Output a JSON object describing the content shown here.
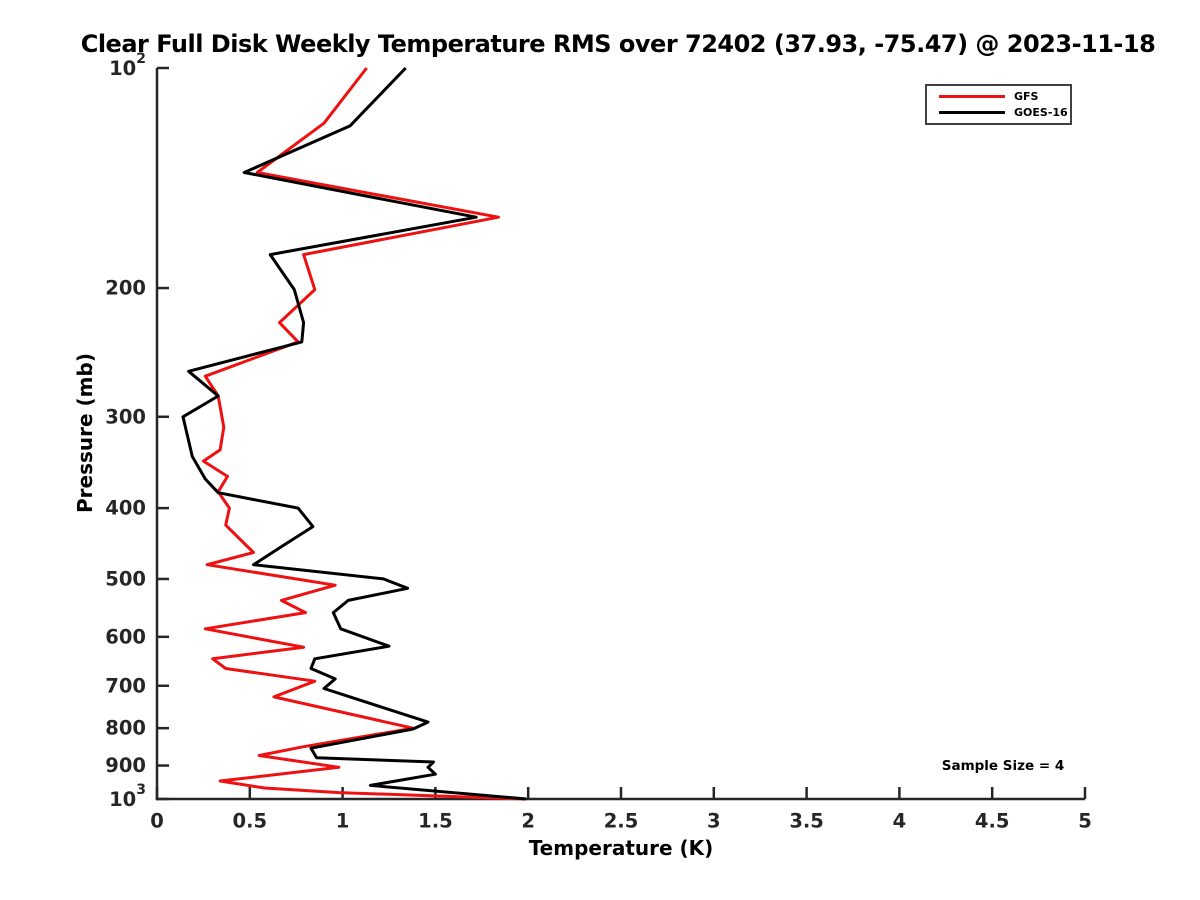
{
  "title": "Clear Full Disk Weekly Temperature RMS over 72402 (37.93, -75.47) @ 2023-11-18",
  "axes": {
    "x_label": "Temperature (K)",
    "y_label": "Pressure (mb)"
  },
  "annotations": {
    "sample_size": "Sample Size = 4"
  },
  "legend": {
    "position": "top-right",
    "items": [
      {
        "label": "GFS",
        "color": "#ee1111"
      },
      {
        "label": "GOES-16",
        "color": "#000000"
      }
    ]
  },
  "chart_data": {
    "type": "line",
    "title": "Clear Full Disk Weekly Temperature RMS over 72402 (37.93, -75.47) @ 2023-11-18",
    "xlabel": "Temperature (K)",
    "ylabel": "Pressure (mb)",
    "xlim": [
      0,
      5
    ],
    "ylim": [
      100,
      1000
    ],
    "y_scale": "log",
    "y_inverted": true,
    "grid": false,
    "sample_size": 4,
    "x_ticks": [
      {
        "value": 0,
        "label": "0"
      },
      {
        "value": 0.5,
        "label": "0.5"
      },
      {
        "value": 1,
        "label": "1"
      },
      {
        "value": 1.5,
        "label": "1.5"
      },
      {
        "value": 2,
        "label": "2"
      },
      {
        "value": 2.5,
        "label": "2.5"
      },
      {
        "value": 3,
        "label": "3"
      },
      {
        "value": 3.5,
        "label": "3.5"
      },
      {
        "value": 4,
        "label": "4"
      },
      {
        "value": 4.5,
        "label": "4.5"
      },
      {
        "value": 5,
        "label": "5"
      }
    ],
    "y_ticks": [
      {
        "value": 100,
        "label": "10^2"
      },
      {
        "value": 200,
        "label": "200"
      },
      {
        "value": 300,
        "label": "300"
      },
      {
        "value": 400,
        "label": "400"
      },
      {
        "value": 500,
        "label": "500"
      },
      {
        "value": 600,
        "label": "600"
      },
      {
        "value": 700,
        "label": "700"
      },
      {
        "value": 800,
        "label": "800"
      },
      {
        "value": 900,
        "label": "900"
      },
      {
        "value": 1000,
        "label": "10^3"
      }
    ],
    "series": [
      {
        "name": "GFS",
        "color": "#ee1111",
        "points_format": [
          "pressure_mb",
          "rms_K"
        ],
        "points": [
          [
            100,
            1.13
          ],
          [
            119,
            0.9
          ],
          [
            139,
            0.54
          ],
          [
            160,
            1.84
          ],
          [
            180,
            0.79
          ],
          [
            201,
            0.85
          ],
          [
            223,
            0.66
          ],
          [
            237,
            0.76
          ],
          [
            264,
            0.26
          ],
          [
            281,
            0.33
          ],
          [
            310,
            0.36
          ],
          [
            333,
            0.34
          ],
          [
            345,
            0.25
          ],
          [
            362,
            0.38
          ],
          [
            380,
            0.33
          ],
          [
            400,
            0.39
          ],
          [
            422,
            0.37
          ],
          [
            460,
            0.52
          ],
          [
            478,
            0.27
          ],
          [
            510,
            0.96
          ],
          [
            535,
            0.67
          ],
          [
            556,
            0.8
          ],
          [
            585,
            0.26
          ],
          [
            620,
            0.79
          ],
          [
            643,
            0.3
          ],
          [
            663,
            0.37
          ],
          [
            690,
            0.85
          ],
          [
            725,
            0.63
          ],
          [
            800,
            1.38
          ],
          [
            848,
            0.79
          ],
          [
            872,
            0.55
          ],
          [
            905,
            0.98
          ],
          [
            945,
            0.34
          ],
          [
            966,
            0.58
          ],
          [
            980,
            0.98
          ],
          [
            1000,
            1.98
          ]
        ]
      },
      {
        "name": "GOES-16",
        "color": "#000000",
        "points_format": [
          "pressure_mb",
          "rms_K"
        ],
        "points": [
          [
            100,
            1.34
          ],
          [
            120,
            1.04
          ],
          [
            139,
            0.47
          ],
          [
            160,
            1.72
          ],
          [
            180,
            0.61
          ],
          [
            201,
            0.74
          ],
          [
            223,
            0.79
          ],
          [
            237,
            0.78
          ],
          [
            260,
            0.17
          ],
          [
            281,
            0.33
          ],
          [
            300,
            0.14
          ],
          [
            340,
            0.19
          ],
          [
            365,
            0.26
          ],
          [
            381,
            0.33
          ],
          [
            400,
            0.76
          ],
          [
            424,
            0.84
          ],
          [
            450,
            0.68
          ],
          [
            478,
            0.52
          ],
          [
            500,
            1.22
          ],
          [
            515,
            1.35
          ],
          [
            535,
            1.03
          ],
          [
            556,
            0.95
          ],
          [
            585,
            0.99
          ],
          [
            618,
            1.25
          ],
          [
            643,
            0.85
          ],
          [
            663,
            0.83
          ],
          [
            685,
            0.96
          ],
          [
            706,
            0.9
          ],
          [
            785,
            1.46
          ],
          [
            802,
            1.38
          ],
          [
            852,
            0.83
          ],
          [
            878,
            0.86
          ],
          [
            890,
            1.49
          ],
          [
            905,
            1.46
          ],
          [
            925,
            1.5
          ],
          [
            958,
            1.15
          ],
          [
            1000,
            1.99
          ]
        ]
      }
    ]
  }
}
